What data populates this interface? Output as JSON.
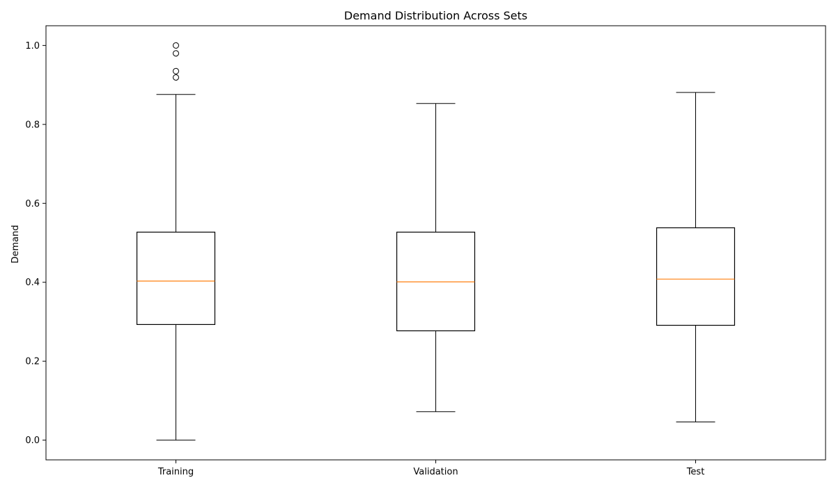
{
  "chart_data": {
    "type": "boxplot",
    "title": "Demand Distribution Across Sets",
    "xlabel": "",
    "ylabel": "Demand",
    "ylim": [
      -0.05,
      1.05
    ],
    "yticks": [
      0.0,
      0.2,
      0.4,
      0.6,
      0.8,
      1.0
    ],
    "ytick_labels": [
      "0.0",
      "0.2",
      "0.4",
      "0.6",
      "0.8",
      "1.0"
    ],
    "grid": false,
    "categories": [
      "Training",
      "Validation",
      "Test"
    ],
    "boxes": [
      {
        "name": "Training",
        "whisker_low": 0.0,
        "q1": 0.293,
        "median": 0.403,
        "q3": 0.527,
        "whisker_high": 0.876,
        "outliers": [
          0.919,
          0.935,
          0.98,
          1.0
        ]
      },
      {
        "name": "Validation",
        "whisker_low": 0.072,
        "q1": 0.277,
        "median": 0.401,
        "q3": 0.527,
        "whisker_high": 0.853,
        "outliers": []
      },
      {
        "name": "Test",
        "whisker_low": 0.046,
        "q1": 0.291,
        "median": 0.408,
        "q3": 0.538,
        "whisker_high": 0.881,
        "outliers": []
      }
    ],
    "colors": {
      "box": "#000000",
      "median": "#ff7f0e",
      "background": "#ffffff"
    }
  }
}
